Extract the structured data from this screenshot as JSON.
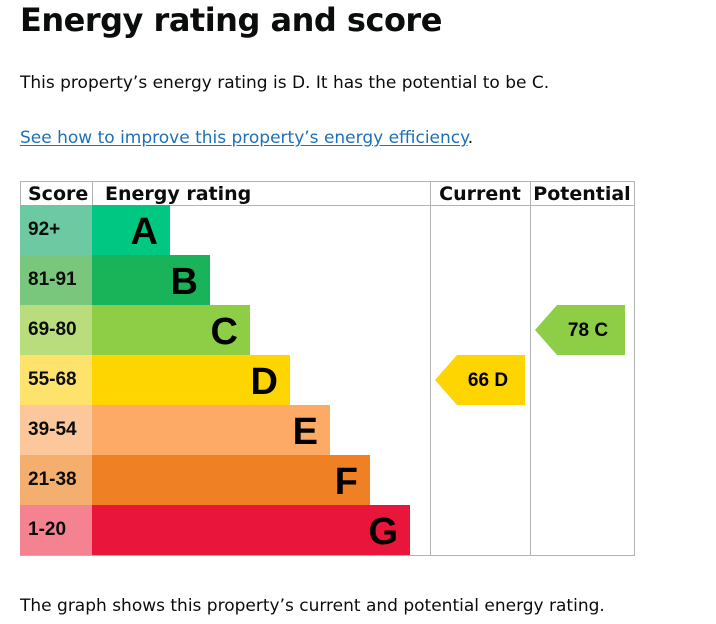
{
  "page": {
    "title": "Energy rating and score",
    "summary": "This property’s energy rating is D. It has the potential to be C.",
    "improve_link": "See how to improve this property’s energy efficiency",
    "improve_link_suffix": ".",
    "footer": "The graph shows this property’s current and potential energy rating."
  },
  "chart_data": {
    "type": "table",
    "headers": {
      "score": "Score",
      "rating": "Energy rating",
      "current": "Current",
      "potential": "Potential"
    },
    "bands": [
      {
        "score": "92+",
        "letter": "A",
        "score_color": "#6cc9a1",
        "band_color": "#00c781"
      },
      {
        "score": "81-91",
        "letter": "B",
        "score_color": "#79c77d",
        "band_color": "#19b459"
      },
      {
        "score": "69-80",
        "letter": "C",
        "score_color": "#b9dd7c",
        "band_color": "#8dce46"
      },
      {
        "score": "55-68",
        "letter": "D",
        "score_color": "#fde36c",
        "band_color": "#ffd500"
      },
      {
        "score": "39-54",
        "letter": "E",
        "score_color": "#fcc89b",
        "band_color": "#fcaa65"
      },
      {
        "score": "21-38",
        "letter": "F",
        "score_color": "#f4ae6e",
        "band_color": "#ef8023"
      },
      {
        "score": "1-20",
        "letter": "G",
        "score_color": "#f58291",
        "band_color": "#e9153b"
      }
    ],
    "current": {
      "score": 66,
      "letter": "D",
      "label": "66 D",
      "color": "#ffd500"
    },
    "potential": {
      "score": 78,
      "letter": "C",
      "label": "78 C",
      "color": "#8dce46"
    }
  }
}
